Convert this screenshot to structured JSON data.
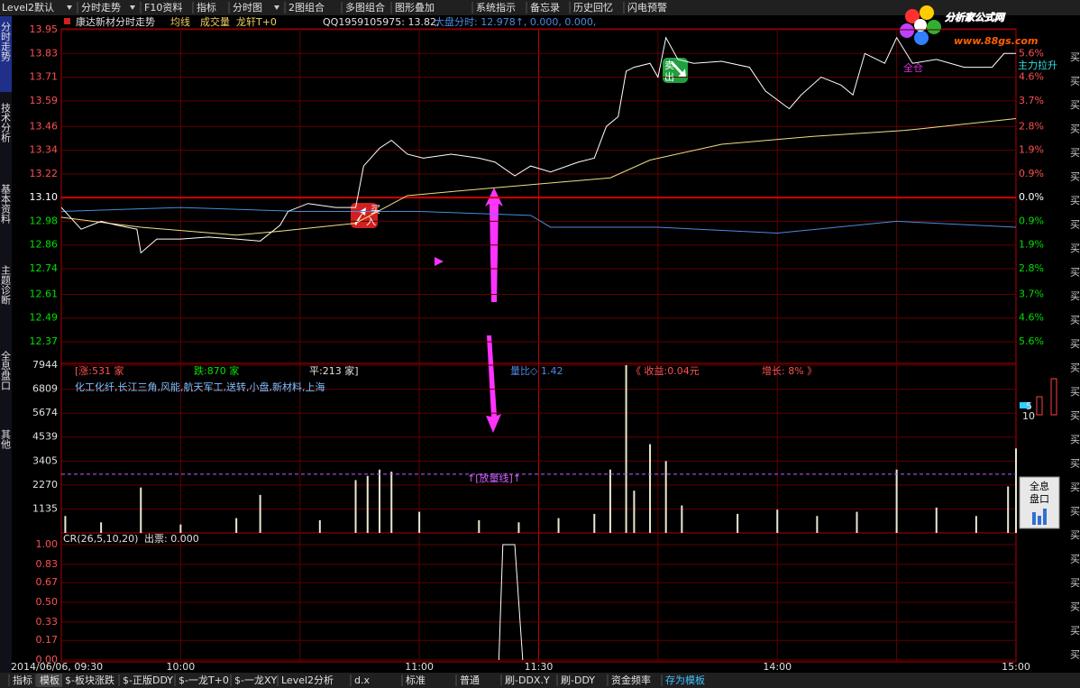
{
  "toolbar": [
    "Level2默认",
    "分时走势",
    "F10资料",
    "指标",
    "分时图",
    "2图组合",
    "多图组合",
    "图形叠加",
    "系统指示",
    "备忘录",
    "历史回忆",
    "闪电预警"
  ],
  "header": {
    "title": "康达新材分时走势",
    "items": [
      "均线",
      "成交量",
      "龙轩T+0"
    ],
    "quote": "QQ1959105975: 13.82,",
    "index_info": "大盘分时: 12.978↑, 0.000, 0.000,"
  },
  "side_tabs": [
    "分时走势",
    "技术分析",
    "基本资料",
    "主题诊断",
    "全息盘口",
    "其他"
  ],
  "price_chart": {
    "ylim": [
      12.37,
      13.95
    ],
    "yticks": [
      13.95,
      13.83,
      13.71,
      13.59,
      13.46,
      13.34,
      13.22,
      {
        "value": 13.1,
        "label": "13.10"
      },
      12.98,
      12.86,
      12.74,
      12.61,
      12.49,
      12.37
    ],
    "pct_labels": [
      "5.6%",
      "4.6%",
      "3.7%",
      "2.8%",
      "1.9%",
      "0.9%",
      "0.0%",
      "0.9%",
      "1.9%",
      "2.8%",
      "3.7%",
      "4.6%",
      "5.6%"
    ],
    "price_line": {
      "color": "#ffffff",
      "x": [
        "09:30",
        "09:35",
        "09:40",
        "09:44",
        "09:49",
        "09:50",
        "09:54",
        "10:00",
        "10:07",
        "10:14",
        "10:20",
        "10:25",
        "10:27",
        "10:32",
        "10:39",
        "10:44",
        "10:46",
        "10:50",
        "10:53",
        "10:57",
        "11:01",
        "11:08",
        "11:15",
        "11:19",
        "11:24",
        "11:28",
        "13:03",
        "13:10",
        "13:14",
        "13:17",
        "13:20",
        "13:22",
        "13:24",
        "13:28",
        "13:30",
        "13:32",
        "13:35",
        "13:39",
        "13:46",
        "13:53",
        "13:57",
        "14:03",
        "14:06",
        "14:11",
        "14:16",
        "14:19",
        "14:22",
        "14:27",
        "14:30",
        "14:34",
        "14:40",
        "14:47",
        "14:54",
        "14:57",
        "15:00"
      ],
      "values": [
        13.05,
        12.94,
        12.98,
        12.96,
        12.94,
        12.82,
        12.89,
        12.89,
        12.9,
        12.89,
        12.88,
        12.96,
        13.03,
        13.07,
        13.05,
        13.05,
        13.26,
        13.35,
        13.39,
        13.32,
        13.3,
        13.32,
        13.3,
        13.28,
        13.21,
        13.26,
        13.23,
        13.28,
        13.3,
        13.46,
        13.51,
        13.74,
        13.76,
        13.78,
        13.71,
        13.91,
        13.8,
        13.78,
        13.79,
        13.76,
        13.64,
        13.55,
        13.62,
        13.71,
        13.67,
        13.62,
        13.83,
        13.78,
        13.91,
        13.78,
        13.8,
        13.76,
        13.76,
        13.83,
        13.83
      ]
    },
    "avg_line": {
      "color": "#f0e080",
      "x": [
        "09:30",
        "09:50",
        "10:14",
        "10:25",
        "10:44",
        "10:57",
        "11:19",
        "13:18",
        "13:28",
        "13:46",
        "14:09",
        "14:32",
        "15:00"
      ],
      "values": [
        13.0,
        12.95,
        12.91,
        12.93,
        12.97,
        13.11,
        13.15,
        13.2,
        13.29,
        13.37,
        13.41,
        13.44,
        13.5
      ]
    },
    "index_line": {
      "color": "#4a8adf",
      "x": [
        "09:30",
        "10:00",
        "10:30",
        "11:00",
        "11:28",
        "13:03",
        "13:30",
        "14:00",
        "14:30",
        "15:00"
      ],
      "values": [
        13.03,
        13.05,
        13.03,
        13.03,
        13.01,
        12.95,
        12.95,
        12.92,
        12.98,
        12.95
      ]
    },
    "annotations": {
      "buy": [
        "买",
        "入"
      ],
      "sell": [
        "卖",
        "出"
      ],
      "full": "全仓",
      "rally": "主力拉升"
    }
  },
  "volume_chart": {
    "ylim": [
      0,
      7944
    ],
    "yticks": [
      7944,
      6809,
      5674,
      4539,
      3405,
      2270,
      1135
    ],
    "header": [
      "[涨:531 家",
      "跌:870 家",
      "平:213 家]",
      "量比◇ 1.42",
      "《 收益:0.04元",
      "增长: 8% 》"
    ],
    "sectors": "化工化纤,长江三角,风能,航天军工,送转,小盘,新材料,上海",
    "color": "#ece8d0",
    "x": [
      "09:31",
      "09:40",
      "09:50",
      "10:00",
      "10:14",
      "10:20",
      "10:35",
      "10:44",
      "10:47",
      "10:50",
      "10:53",
      "11:00",
      "11:15",
      "11:25",
      "13:05",
      "13:14",
      "13:18",
      "13:22",
      "13:24",
      "13:28",
      "13:32",
      "13:36",
      "13:50",
      "14:00",
      "14:10",
      "14:20",
      "14:30",
      "14:40",
      "14:50",
      "14:58",
      "15:00"
    ],
    "values": [
      800,
      500,
      2150,
      400,
      700,
      1800,
      600,
      2500,
      2700,
      3000,
      2900,
      1000,
      600,
      500,
      700,
      900,
      3000,
      7944,
      2000,
      4200,
      3400,
      1300,
      900,
      1100,
      800,
      1000,
      3000,
      1200,
      800,
      2200,
      4000
    ],
    "threshold": {
      "label": "↑[放量线]↑",
      "value": 2780
    }
  },
  "cr_chart": {
    "title": "CR(26,5,10,20)",
    "output": "出票: 0.000",
    "ylim": [
      0,
      1
    ],
    "yticks": [
      {
        "value": 1,
        "label": "1.00"
      },
      0.83,
      0.67,
      {
        "value": 0.5,
        "label": "0.50"
      },
      0.33,
      0.17,
      {
        "value": 0,
        "label": "0.00"
      }
    ],
    "x": [
      "11:20",
      "11:21",
      "11:24",
      "11:26"
    ],
    "values": [
      0,
      1,
      1,
      0
    ]
  },
  "time_axis": [
    "2014/06/06, 09:30",
    "10:00",
    "11:00",
    "11:30",
    "14:00",
    "15:00"
  ],
  "bottom_tabs": [
    "指标",
    "模板",
    "$-板块涨跌",
    "$-正版DDY",
    "$-一龙T+0",
    "$-一龙XY",
    "Level2分析",
    "d.x",
    "标准",
    "普通",
    "刷-DDX.Y",
    "刷-DDY",
    "资金频率",
    "存为模板"
  ],
  "logo": {
    "name": "分析家公式网",
    "url": "www.88gs.com"
  },
  "right_column": [
    "买",
    "买",
    "买",
    "买",
    "买",
    "买",
    "买",
    "买",
    "买",
    "买",
    "买",
    "买",
    "买",
    "买",
    "买",
    "买",
    "买",
    "买",
    "买",
    "买",
    "买",
    "买",
    "买",
    "买",
    "买",
    "买"
  ],
  "widget": {
    "labels": [
      "5",
      "10"
    ],
    "button": [
      "全息",
      "盘口"
    ]
  }
}
